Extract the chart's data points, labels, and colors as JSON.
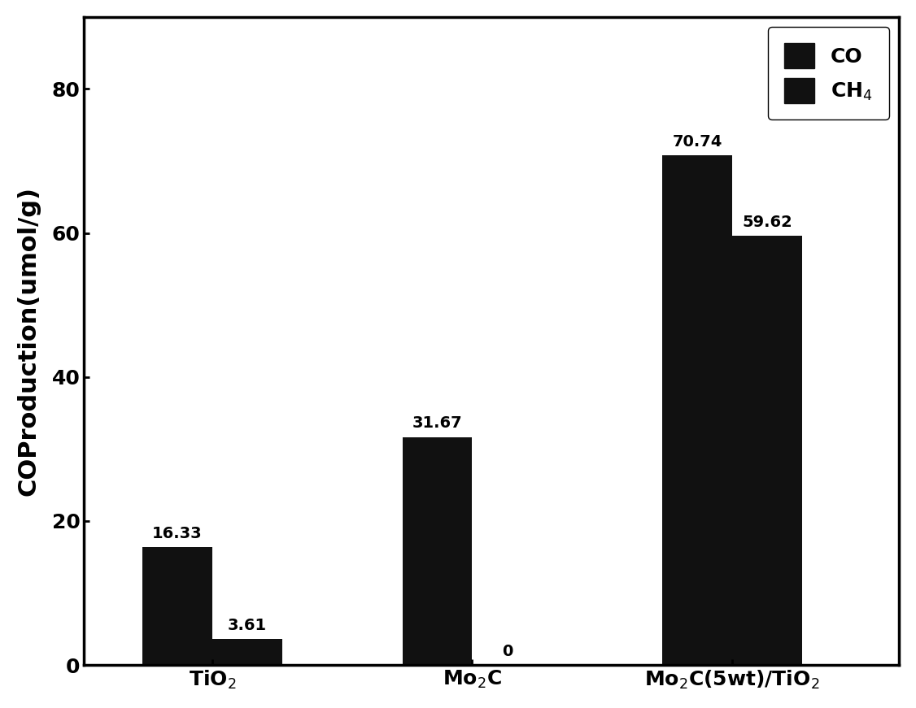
{
  "categories": [
    "TiO$_2$",
    "Mo$_2$C",
    "Mo$_2$C(5wt)/TiO$_2$"
  ],
  "co_values": [
    16.33,
    31.67,
    70.74
  ],
  "ch4_values": [
    3.61,
    0,
    59.62
  ],
  "bar_color": "#111111",
  "bar_width": 0.18,
  "ylim": [
    0,
    90
  ],
  "yticks": [
    0,
    20,
    40,
    60,
    80
  ],
  "ylabel": "COProduction(umol/g)",
  "legend_labels": [
    "CO",
    "CH$_4$"
  ],
  "annotation_fontsize": 14,
  "label_fontsize": 22,
  "tick_fontsize": 18,
  "legend_fontsize": 18,
  "background_color": "#ffffff",
  "x_tick_labels": [
    "TiO$_2$",
    "Mo$_2$C",
    "Mo$_2$C(5wt)/TiO$_2$"
  ],
  "x_positions": [
    0.33,
    1.0,
    1.67
  ],
  "xlim": [
    0.0,
    2.1
  ]
}
